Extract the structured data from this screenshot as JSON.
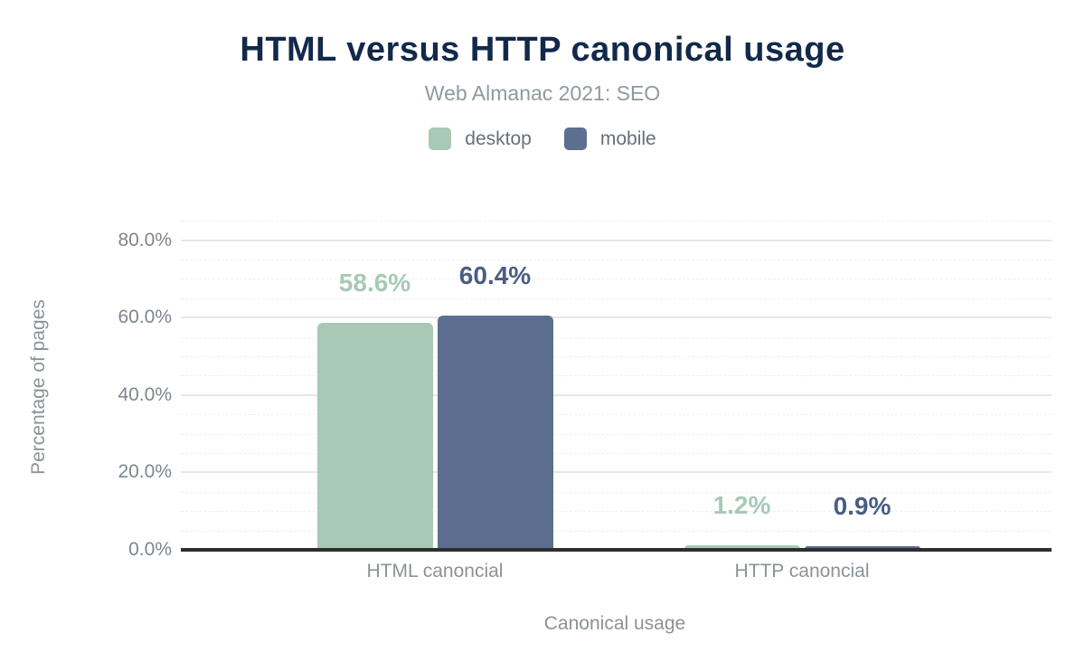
{
  "chart_data": {
    "type": "bar",
    "title": "HTML versus HTTP canonical usage",
    "subtitle": "Web Almanac 2021: SEO",
    "xlabel": "Canonical usage",
    "ylabel": "Percentage of pages",
    "categories": [
      "HTML canoncial",
      "HTTP canoncial"
    ],
    "series": [
      {
        "name": "desktop",
        "color": "#a7c9b6",
        "label_color": "#a7c9b6",
        "values": [
          58.6,
          1.2
        ],
        "value_labels": [
          "58.6%",
          "1.2%"
        ]
      },
      {
        "name": "mobile",
        "color": "#5d6f90",
        "label_color": "#4a5d84",
        "values": [
          60.4,
          0.9
        ],
        "value_labels": [
          "60.4%",
          "0.9%"
        ]
      }
    ],
    "y_axis": {
      "ticks": [
        {
          "label": "0.0%",
          "value": 0
        },
        {
          "label": "20.0%",
          "value": 20
        },
        {
          "label": "40.0%",
          "value": 40
        },
        {
          "label": "60.0%",
          "value": 60
        },
        {
          "label": "80.0%",
          "value": 80
        }
      ],
      "max": 85,
      "minor_step": 5
    },
    "ylim": [
      0,
      85
    ],
    "grid": "horizontal",
    "legend_position": "top"
  },
  "colors": {
    "background": "#ffffff",
    "title_text": "#13294b",
    "subtitle_text": "#8f99a2",
    "legend_text": "#667079",
    "tick_text": "#7d868e",
    "category_text": "#8b9298",
    "axis_title_text": "#8b9298",
    "axis_line": "#2e2e2e",
    "grid_major": "#e7e7e7",
    "grid_minor": "#efefef",
    "desktop_accent": "#a7c9b6",
    "mobile_accent": "#5d6f90"
  }
}
